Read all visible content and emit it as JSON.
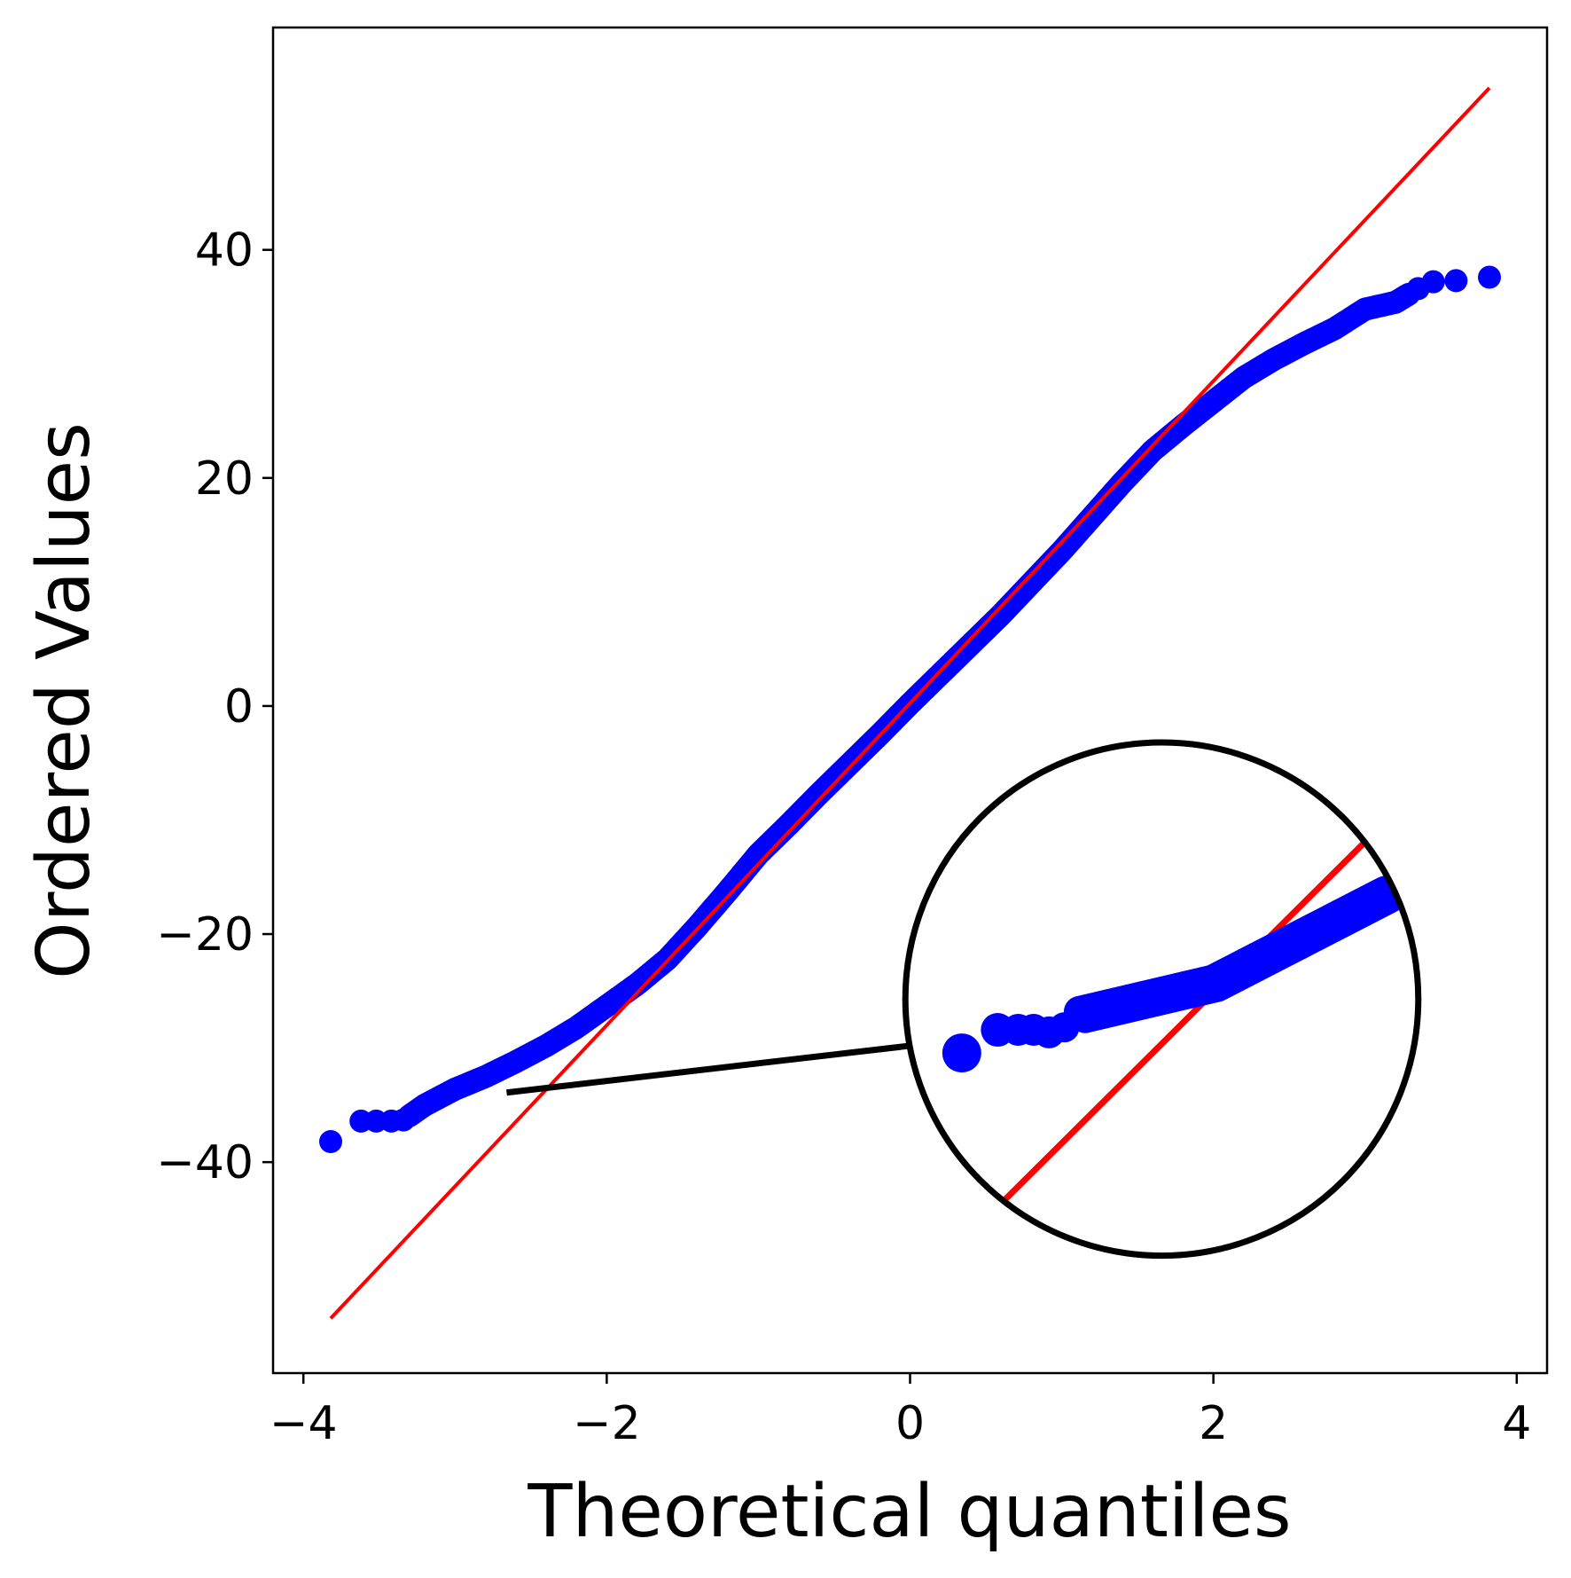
{
  "chart_data": {
    "type": "scatter",
    "title": "",
    "xlabel": "Theoretical quantiles",
    "ylabel": "Ordered Values",
    "xlim": [
      -4.2,
      4.2
    ],
    "ylim": [
      -58.5,
      59.5
    ],
    "x_ticks": [
      -4,
      -2,
      0,
      2,
      4
    ],
    "x_tick_labels": [
      "−4",
      "−2",
      "0",
      "2",
      "4"
    ],
    "y_ticks": [
      -40,
      -20,
      0,
      20,
      40
    ],
    "y_tick_labels": [
      "−40",
      "−20",
      "0",
      "20",
      "40"
    ],
    "grid": false,
    "legend": "none",
    "colors": {
      "points": "#0000ff",
      "fit_line": "#ff0000",
      "inset": "#000000"
    },
    "fit_line": {
      "x": [
        -3.82,
        3.82
      ],
      "y": [
        -53.7,
        54.2
      ]
    },
    "sample_quantiles": [
      [
        -3.82,
        -38.2
      ],
      [
        -3.62,
        -36.4
      ],
      [
        -3.52,
        -36.4
      ],
      [
        -3.42,
        -36.4
      ],
      [
        -3.34,
        -36.3
      ],
      [
        -3.2,
        -35.0
      ],
      [
        -3.0,
        -33.6
      ],
      [
        -2.8,
        -32.5
      ],
      [
        -2.6,
        -31.2
      ],
      [
        -2.4,
        -29.8
      ],
      [
        -2.2,
        -28.2
      ],
      [
        -2.0,
        -26.3
      ],
      [
        -1.8,
        -24.4
      ],
      [
        -1.6,
        -22.2
      ],
      [
        -1.4,
        -19.3
      ],
      [
        -1.2,
        -16.2
      ],
      [
        -1.0,
        -13.0
      ],
      [
        -0.8,
        -10.4
      ],
      [
        -0.6,
        -7.7
      ],
      [
        -0.4,
        -5.1
      ],
      [
        -0.2,
        -2.5
      ],
      [
        0.0,
        0.2
      ],
      [
        0.2,
        2.8
      ],
      [
        0.4,
        5.4
      ],
      [
        0.6,
        8.0
      ],
      [
        0.8,
        10.8
      ],
      [
        1.0,
        13.6
      ],
      [
        1.2,
        16.6
      ],
      [
        1.4,
        19.6
      ],
      [
        1.6,
        22.4
      ],
      [
        1.8,
        24.6
      ],
      [
        2.0,
        26.7
      ],
      [
        2.2,
        28.8
      ],
      [
        2.4,
        30.4
      ],
      [
        2.6,
        31.8
      ],
      [
        2.8,
        33.1
      ],
      [
        3.0,
        34.8
      ],
      [
        3.2,
        35.4
      ],
      [
        3.35,
        36.6
      ],
      [
        3.45,
        37.2
      ],
      [
        3.6,
        37.3
      ],
      [
        3.82,
        37.6
      ]
    ],
    "inset": {
      "center": [
        1.66,
        -25.7
      ],
      "radius_x": 1.12,
      "radius_y": 30.1,
      "zoom_on": [
        -2.66,
        -33.9
      ]
    }
  }
}
